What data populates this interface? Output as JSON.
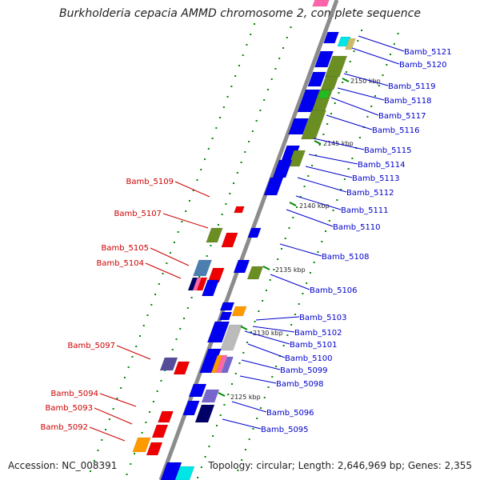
{
  "title": "Burkholderia cepacia AMMD chromosome 2, complete sequence",
  "accession": "Accession: NC_008391",
  "topology": "Topology: circular; Length: 2,646,969 bp; Genes: 2,355",
  "colors": {
    "backbone": "#8c8c8c",
    "label_right": "#0000cc",
    "label_left": "#cc0000",
    "tick_green": "#008800",
    "gene_blue": "#0000ee",
    "gene_red": "#ee0000",
    "gene_olive": "#6b8e23",
    "gene_green": "#22bb22",
    "gene_cyan": "#00e5e5",
    "gene_orange": "#ff9900",
    "gene_pink": "#ff66aa",
    "gene_steel": "#4a7fb0",
    "gene_purple": "#554d99",
    "gene_navy": "#000066",
    "gene_grey": "#bbbbbb",
    "gene_lavender": "#7766cc",
    "gene_khaki": "#ccbb66"
  },
  "scale_labels": [
    "2150 kbp",
    "2145 kbp",
    "2140 kbp",
    "2135 kbp",
    "2130 kbp",
    "2125 kbp"
  ],
  "right_labels": [
    "Bamb_5121",
    "Bamb_5120",
    "Bamb_5119",
    "Bamb_5118",
    "Bamb_5117",
    "Bamb_5116",
    "Bamb_5115",
    "Bamb_5114",
    "Bamb_5113",
    "Bamb_5112",
    "Bamb_5111",
    "Bamb_5110",
    "Bamb_5108",
    "Bamb_5106",
    "Bamb_5103",
    "Bamb_5102",
    "Bamb_5101",
    "Bamb_5100",
    "Bamb_5099",
    "Bamb_5098",
    "Bamb_5096",
    "Bamb_5095"
  ],
  "left_labels": [
    "Bamb_5109",
    "Bamb_5107",
    "Bamb_5105",
    "Bamb_5104",
    "Bamb_5097",
    "Bamb_5094",
    "Bamb_5093",
    "Bamb_5092"
  ]
}
